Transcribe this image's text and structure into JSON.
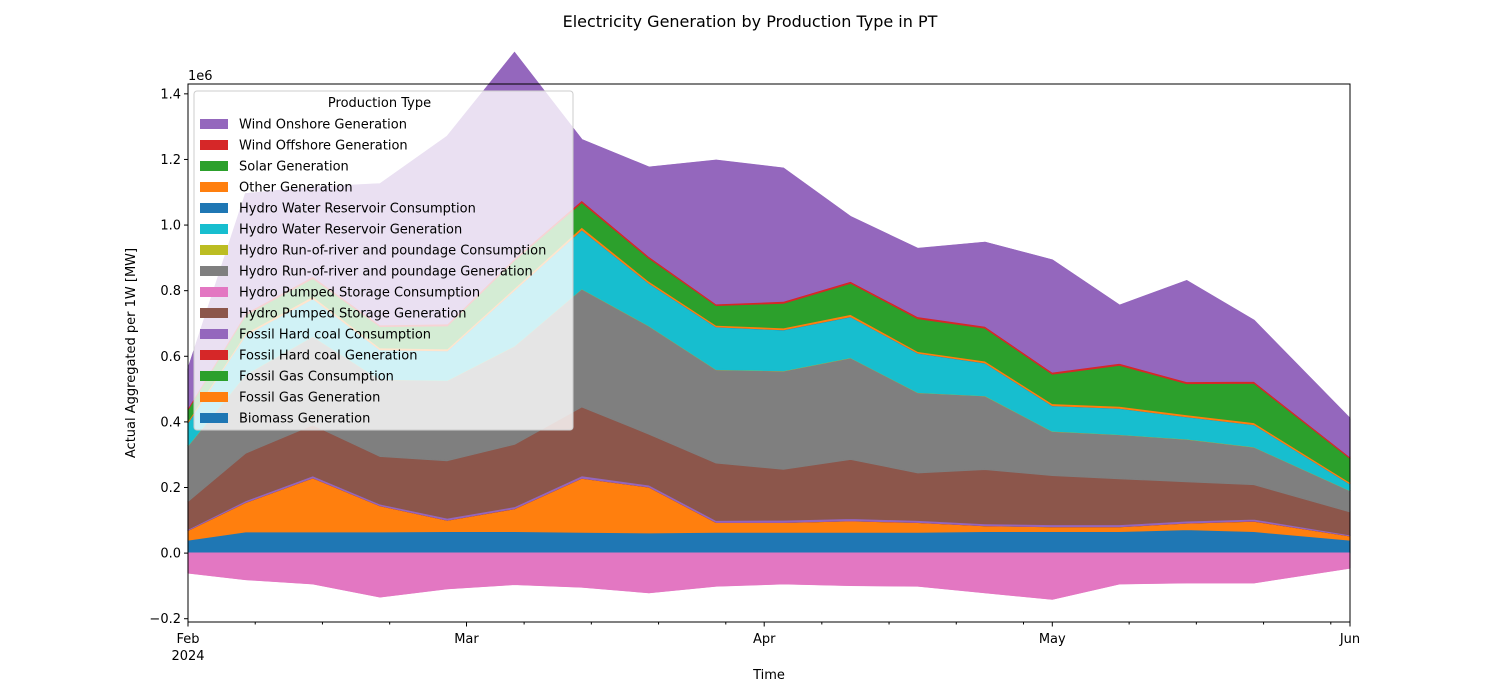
{
  "chart_data": {
    "type": "area",
    "title": "Electricity Generation by Production Type in PT",
    "xlabel": "Time",
    "ylabel": "Actual Aggregated per 1W [MW]",
    "y_multiplier_label": "1e6",
    "ylim": [
      -0.21,
      1.43
    ],
    "y_ticks": [
      -0.2,
      0.0,
      0.2,
      0.4,
      0.6,
      0.8,
      1.0,
      1.2,
      1.4
    ],
    "y_tick_labels": [
      "−0.2",
      "0.0",
      "0.2",
      "0.4",
      "0.6",
      "0.8",
      "1.0",
      "1.2",
      "1.4"
    ],
    "x_start": "2024-02-01",
    "x_end": "2024-06-01",
    "x_ticks": [
      {
        "date": "2024-02-01",
        "label": "Feb",
        "sublabel": "2024"
      },
      {
        "date": "2024-03-01",
        "label": "Mar"
      },
      {
        "date": "2024-04-01",
        "label": "Apr"
      },
      {
        "date": "2024-05-01",
        "label": "May"
      },
      {
        "date": "2024-06-01",
        "label": "Jun"
      }
    ],
    "x_minor_ticks": [
      "2024-02-08",
      "2024-02-15",
      "2024-02-22",
      "2024-03-07",
      "2024-03-14",
      "2024-03-21",
      "2024-03-28",
      "2024-04-07",
      "2024-04-14",
      "2024-04-21",
      "2024-04-28",
      "2024-05-09",
      "2024-05-16",
      "2024-05-23",
      "2024-05-30"
    ],
    "x": [
      "2024-02-01",
      "2024-02-07",
      "2024-02-14",
      "2024-02-21",
      "2024-02-28",
      "2024-03-06",
      "2024-03-13",
      "2024-03-20",
      "2024-03-27",
      "2024-04-03",
      "2024-04-10",
      "2024-04-17",
      "2024-04-24",
      "2024-05-01",
      "2024-05-08",
      "2024-05-15",
      "2024-05-22",
      "2024-06-01"
    ],
    "grid": false,
    "legend": {
      "title": "Production Type",
      "position": "upper-left",
      "alpha": 0.8
    },
    "series": [
      {
        "name": "Biomass Generation",
        "color": "#1f77b4",
        "values": [
          0.04,
          0.065,
          0.065,
          0.065,
          0.066,
          0.066,
          0.064,
          0.062,
          0.064,
          0.064,
          0.064,
          0.064,
          0.066,
          0.066,
          0.066,
          0.072,
          0.066,
          0.04
        ]
      },
      {
        "name": "Fossil Gas Generation",
        "color": "#ff7f0e",
        "values": [
          0.03,
          0.09,
          0.165,
          0.08,
          0.035,
          0.07,
          0.165,
          0.14,
          0.03,
          0.03,
          0.035,
          0.03,
          0.018,
          0.015,
          0.015,
          0.02,
          0.032,
          0.013
        ]
      },
      {
        "name": "Fossil Gas Consumption",
        "color": "#2ca02c",
        "values": [
          0,
          0,
          0,
          0,
          0,
          0,
          0,
          0,
          0,
          0,
          0,
          0,
          0,
          0,
          0,
          0,
          0,
          0
        ]
      },
      {
        "name": "Fossil Hard coal Generation",
        "color": "#d62728",
        "values": [
          0,
          0,
          0,
          0,
          0,
          0,
          0,
          0,
          0,
          0,
          0,
          0,
          0,
          0,
          0,
          0,
          0,
          0
        ]
      },
      {
        "name": "Fossil Hard coal Consumption",
        "color": "#9467bd",
        "values": [
          0.003,
          0.005,
          0.006,
          0.005,
          0.006,
          0.006,
          0.007,
          0.006,
          0.006,
          0.007,
          0.007,
          0.006,
          0.006,
          0.006,
          0.006,
          0.006,
          0.006,
          0.003
        ]
      },
      {
        "name": "Hydro Pumped Storage Generation",
        "color": "#8c564b",
        "values": [
          0.085,
          0.145,
          0.155,
          0.145,
          0.175,
          0.19,
          0.21,
          0.155,
          0.175,
          0.155,
          0.18,
          0.145,
          0.165,
          0.15,
          0.14,
          0.12,
          0.105,
          0.07
        ]
      },
      {
        "name": "Hydro Pumped Storage Consumption",
        "color": "#e377c2",
        "values": [
          -0.06,
          -0.08,
          -0.093,
          -0.133,
          -0.108,
          -0.095,
          -0.103,
          -0.12,
          -0.1,
          -0.093,
          -0.098,
          -0.1,
          -0.12,
          -0.14,
          -0.093,
          -0.09,
          -0.09,
          -0.045
        ]
      },
      {
        "name": "Hydro Run-of-river and poundage Generation",
        "color": "#7f7f7f",
        "values": [
          0.17,
          0.24,
          0.27,
          0.235,
          0.245,
          0.3,
          0.36,
          0.33,
          0.285,
          0.3,
          0.31,
          0.245,
          0.225,
          0.135,
          0.135,
          0.13,
          0.115,
          0.065
        ]
      },
      {
        "name": "Hydro Run-of-river and poundage Consumption",
        "color": "#bcbd22",
        "values": [
          0,
          0,
          0,
          0,
          0,
          0,
          0,
          0,
          0,
          0,
          0,
          0,
          0,
          0,
          0,
          0,
          0,
          0
        ]
      },
      {
        "name": "Hydro Water Reservoir Generation",
        "color": "#17becf",
        "values": [
          0.07,
          0.12,
          0.115,
          0.09,
          0.09,
          0.17,
          0.18,
          0.13,
          0.13,
          0.125,
          0.125,
          0.12,
          0.1,
          0.078,
          0.08,
          0.068,
          0.068,
          0.02
        ]
      },
      {
        "name": "Hydro Water Reservoir Consumption",
        "color": "#1f77b4",
        "values": [
          0,
          0,
          0,
          0,
          0,
          0,
          0,
          0,
          0,
          0,
          0,
          0,
          0,
          0,
          0,
          0,
          0,
          0
        ]
      },
      {
        "name": "Other Generation",
        "color": "#ff7f0e",
        "values": [
          0.005,
          0.006,
          0.007,
          0.006,
          0.006,
          0.006,
          0.008,
          0.006,
          0.005,
          0.006,
          0.007,
          0.005,
          0.006,
          0.006,
          0.006,
          0.006,
          0.006,
          0.005
        ]
      },
      {
        "name": "Solar Generation",
        "color": "#2ca02c",
        "values": [
          0.035,
          0.055,
          0.055,
          0.065,
          0.07,
          0.085,
          0.075,
          0.07,
          0.06,
          0.075,
          0.095,
          0.1,
          0.1,
          0.09,
          0.125,
          0.095,
          0.12,
          0.073
        ]
      },
      {
        "name": "Wind Offshore Generation",
        "color": "#d62728",
        "values": [
          0.005,
          0.006,
          0.006,
          0.005,
          0.006,
          0.006,
          0.007,
          0.006,
          0.005,
          0.006,
          0.006,
          0.006,
          0.006,
          0.006,
          0.006,
          0.006,
          0.006,
          0.005
        ]
      },
      {
        "name": "Wind Onshore Generation",
        "color": "#9467bd",
        "values": [
          0.117,
          0.363,
          0.271,
          0.429,
          0.571,
          0.626,
          0.184,
          0.271,
          0.437,
          0.405,
          0.196,
          0.207,
          0.255,
          0.341,
          0.176,
          0.307,
          0.185,
          0.116
        ]
      }
    ]
  }
}
